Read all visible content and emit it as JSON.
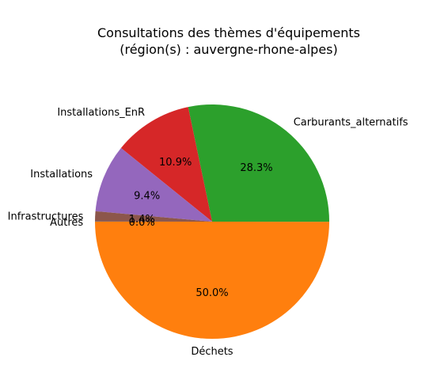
{
  "chart_data": {
    "type": "pie",
    "title_line1": "Consultations des thèmes d'équipements",
    "title_line2": "(région(s) : auvergne-rhone-alpes)",
    "slices": [
      {
        "label": "Déchets",
        "pct_label": "50.0%",
        "value": 50.0,
        "color": "#ff7f0e"
      },
      {
        "label": "Carburants_alternatifs",
        "pct_label": "28.3%",
        "value": 28.3,
        "color": "#2ca02c"
      },
      {
        "label": "Installations_EnR",
        "pct_label": "10.9%",
        "value": 10.9,
        "color": "#d62728"
      },
      {
        "label": "Installations",
        "pct_label": "9.4%",
        "value": 9.4,
        "color": "#9467bd"
      },
      {
        "label": "Infrastructures",
        "pct_label": "1.4%",
        "value": 1.4,
        "color": "#8c564b"
      },
      {
        "label": "Autres",
        "pct_label": "0.0%",
        "value": 0.02,
        "color": "#1f77b4"
      }
    ]
  }
}
